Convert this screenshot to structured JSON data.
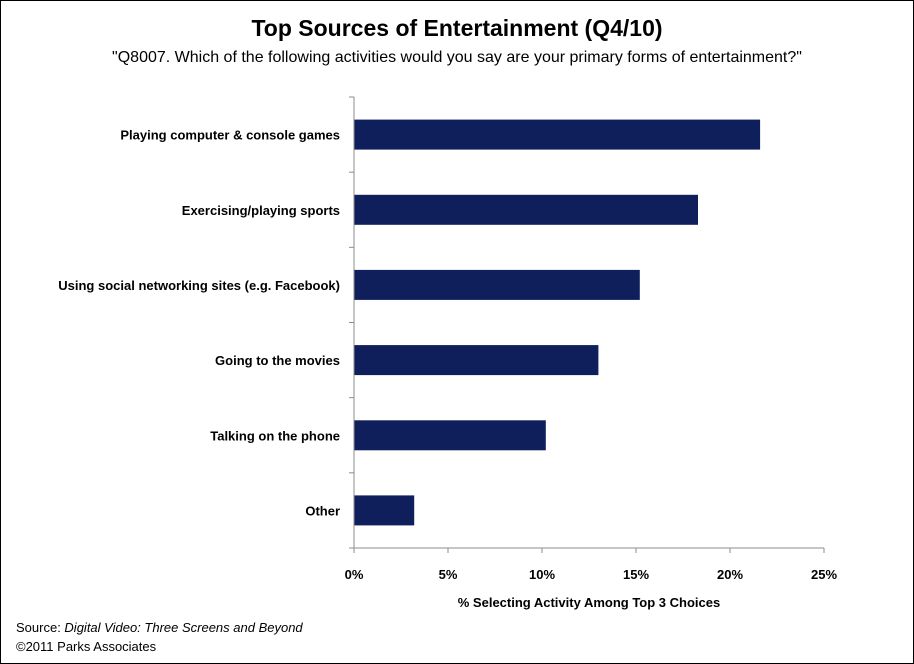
{
  "chart_data": {
    "type": "bar",
    "orientation": "horizontal",
    "title": "Top Sources of Entertainment (Q4/10)",
    "subtitle": "\"Q8007. Which of the following activities  would you say are your primary forms of entertainment?\"",
    "categories": [
      "Playing computer & console games",
      "Exercising/playing sports",
      "Using social networking sites (e.g. Facebook)",
      "Going to the movies",
      "Talking on the phone",
      "Other"
    ],
    "values": [
      21.6,
      18.3,
      15.2,
      13.0,
      10.2,
      3.2
    ],
    "xlabel": "% Selecting Activity Among Top 3 Choices",
    "ylabel": "",
    "xlim": [
      0,
      25
    ],
    "xticks": [
      0,
      5,
      10,
      15,
      20,
      25
    ],
    "xtick_labels": [
      "0%",
      "5%",
      "10%",
      "15%",
      "20%",
      "25%"
    ],
    "bar_color": "#0f1f5c",
    "grid": false,
    "legend": "none"
  },
  "footer": {
    "source_prefix": "Source: ",
    "source_title": "Digital Video: Three Screens and Beyond",
    "copyright": "©2011 Parks Associates"
  }
}
